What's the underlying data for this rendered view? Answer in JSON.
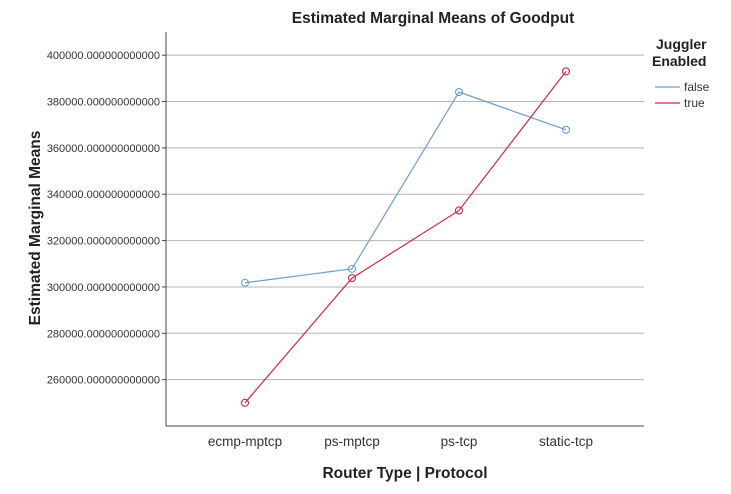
{
  "chart_data": {
    "type": "line",
    "title": "Estimated Marginal Means of Goodput",
    "xlabel": "Router Type | Protocol",
    "ylabel": "Estimated Marginal Means",
    "categories": [
      "ecmp-mptcp",
      "ps-mptcp",
      "ps-tcp",
      "static-tcp"
    ],
    "ylim": [
      240000,
      410000
    ],
    "yticks": [
      260000,
      280000,
      300000,
      320000,
      340000,
      360000,
      380000,
      400000
    ],
    "ytick_labels": [
      "260000.000000000000",
      "280000.000000000000",
      "300000.000000000000",
      "320000.000000000000",
      "340000.000000000000",
      "360000.000000000000",
      "380000.000000000000",
      "400000.000000000000"
    ],
    "grid": "horizontal",
    "legend": {
      "title_lines": [
        "Juggler",
        "Enabled"
      ],
      "placement": "right"
    },
    "series": [
      {
        "name": "false",
        "color": "#6b9fd4",
        "marker": "open-circle",
        "values": [
          301800,
          307800,
          384100,
          367800
        ]
      },
      {
        "name": "true",
        "color": "#d6244a",
        "marker": "open-circle",
        "values": [
          250000,
          303800,
          333000,
          393000
        ]
      }
    ]
  }
}
